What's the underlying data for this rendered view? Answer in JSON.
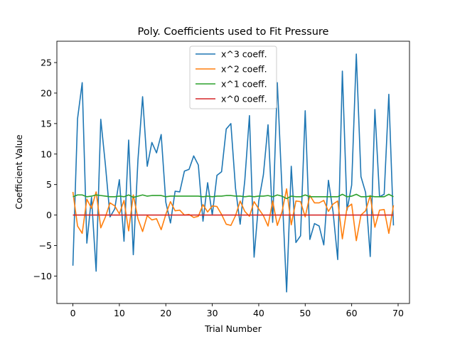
{
  "chart_data": {
    "type": "line",
    "title": "Poly. Coefficients used to Fit Pressure",
    "xlabel": "Trial Number",
    "ylabel": "Coefficient Value",
    "xlim": [
      -3.45,
      72.45
    ],
    "ylim": [
      -14.5,
      28.5
    ],
    "xticks": [
      0,
      10,
      20,
      30,
      40,
      50,
      60,
      70
    ],
    "yticks": [
      -10,
      -5,
      0,
      5,
      10,
      15,
      20,
      25
    ],
    "grid": false,
    "legend_position": "top-center",
    "x": [
      0,
      1,
      2,
      3,
      4,
      5,
      6,
      7,
      8,
      9,
      10,
      11,
      12,
      13,
      14,
      15,
      16,
      17,
      18,
      19,
      20,
      21,
      22,
      23,
      24,
      25,
      26,
      27,
      28,
      29,
      30,
      31,
      32,
      33,
      34,
      35,
      36,
      37,
      38,
      39,
      40,
      41,
      42,
      43,
      44,
      45,
      46,
      47,
      48,
      49,
      50,
      51,
      52,
      53,
      54,
      55,
      56,
      57,
      58,
      59,
      60,
      61,
      62,
      63,
      64,
      65,
      66,
      67,
      68,
      69
    ],
    "series": [
      {
        "name": "x^3 coeff.",
        "color": "#1f77b4",
        "values": [
          -8.3,
          15.8,
          21.7,
          -4.6,
          2.9,
          -9.2,
          15.7,
          8.2,
          -0.3,
          1.0,
          5.8,
          -4.3,
          12.3,
          -6.5,
          9.0,
          19.4,
          8.0,
          11.9,
          10.2,
          13.2,
          2.1,
          -1.3,
          3.9,
          3.8,
          7.2,
          7.5,
          9.7,
          8.2,
          -1.0,
          5.3,
          0.0,
          6.5,
          7.1,
          14.1,
          15.0,
          4.4,
          -1.5,
          5.7,
          16.3,
          -6.9,
          2.3,
          6.6,
          14.8,
          -1.2,
          21.7,
          4.2,
          -12.6,
          8.0,
          -4.5,
          -3.4,
          17.1,
          -4.0,
          -1.4,
          -1.8,
          -4.9,
          5.7,
          0.5,
          -7.3,
          23.6,
          0.8,
          4.9,
          26.4,
          6.3,
          3.7,
          -6.8,
          17.3,
          3.0,
          3.4,
          19.8,
          -1.7
        ]
      },
      {
        "name": "x^2 coeff.",
        "color": "#ff7f0e",
        "values": [
          3.8,
          -1.8,
          -3.0,
          2.6,
          1.1,
          3.8,
          -2.1,
          -0.3,
          2.0,
          1.5,
          0.2,
          2.4,
          -2.6,
          3.3,
          -0.6,
          -2.7,
          -0.1,
          -0.8,
          -0.6,
          -2.4,
          0.1,
          2.2,
          0.7,
          0.8,
          0.0,
          0.1,
          -0.4,
          -0.2,
          1.7,
          0.5,
          1.5,
          1.4,
          0.1,
          -1.5,
          -1.7,
          -0.1,
          2.3,
          0.6,
          -0.2,
          2.2,
          1.0,
          -0.1,
          -1.8,
          2.3,
          -1.7,
          0.5,
          4.3,
          -1.6,
          2.3,
          2.2,
          -0.3,
          3.2,
          2.0,
          2.0,
          2.4,
          0.6,
          1.8,
          2.3,
          -3.9,
          1.2,
          1.8,
          -4.2,
          0.0,
          0.7,
          3.2,
          -2.0,
          0.8,
          0.9,
          -3.0,
          1.6
        ]
      },
      {
        "name": "x^1 coeff.",
        "color": "#2ca02c",
        "values": [
          3.0,
          3.3,
          3.3,
          3.0,
          3.1,
          3.3,
          3.2,
          3.1,
          3.0,
          3.0,
          3.1,
          3.0,
          3.3,
          2.9,
          3.1,
          3.3,
          3.1,
          3.2,
          3.2,
          3.2,
          3.0,
          3.1,
          3.1,
          3.1,
          3.1,
          3.1,
          3.1,
          3.1,
          3.0,
          3.1,
          3.0,
          3.1,
          3.1,
          3.2,
          3.2,
          3.1,
          3.1,
          3.0,
          3.1,
          3.0,
          3.1,
          3.1,
          3.2,
          3.0,
          3.3,
          3.1,
          2.7,
          3.1,
          3.0,
          3.0,
          3.3,
          3.0,
          3.0,
          3.0,
          3.0,
          3.0,
          3.0,
          3.0,
          3.4,
          3.0,
          3.1,
          3.4,
          3.0,
          3.0,
          3.1,
          3.0,
          3.0,
          3.0,
          3.4,
          3.0
        ]
      },
      {
        "name": "x^0 coeff.",
        "color": "#d62728",
        "values": [
          0,
          0,
          0,
          0,
          0,
          0,
          0,
          0,
          0,
          0,
          0,
          0,
          0,
          0,
          0,
          0,
          0,
          0,
          0,
          0,
          0,
          0,
          0,
          0,
          0,
          0,
          0,
          0,
          0,
          0,
          0,
          0,
          0,
          0,
          0,
          0,
          0,
          0,
          0,
          0,
          0,
          0,
          0,
          0,
          0,
          0,
          0,
          0,
          0,
          0,
          0,
          0,
          0,
          0,
          0,
          0,
          0,
          0,
          0,
          0,
          0,
          0,
          0,
          0,
          0,
          0,
          0,
          0,
          0,
          0
        ]
      }
    ]
  }
}
